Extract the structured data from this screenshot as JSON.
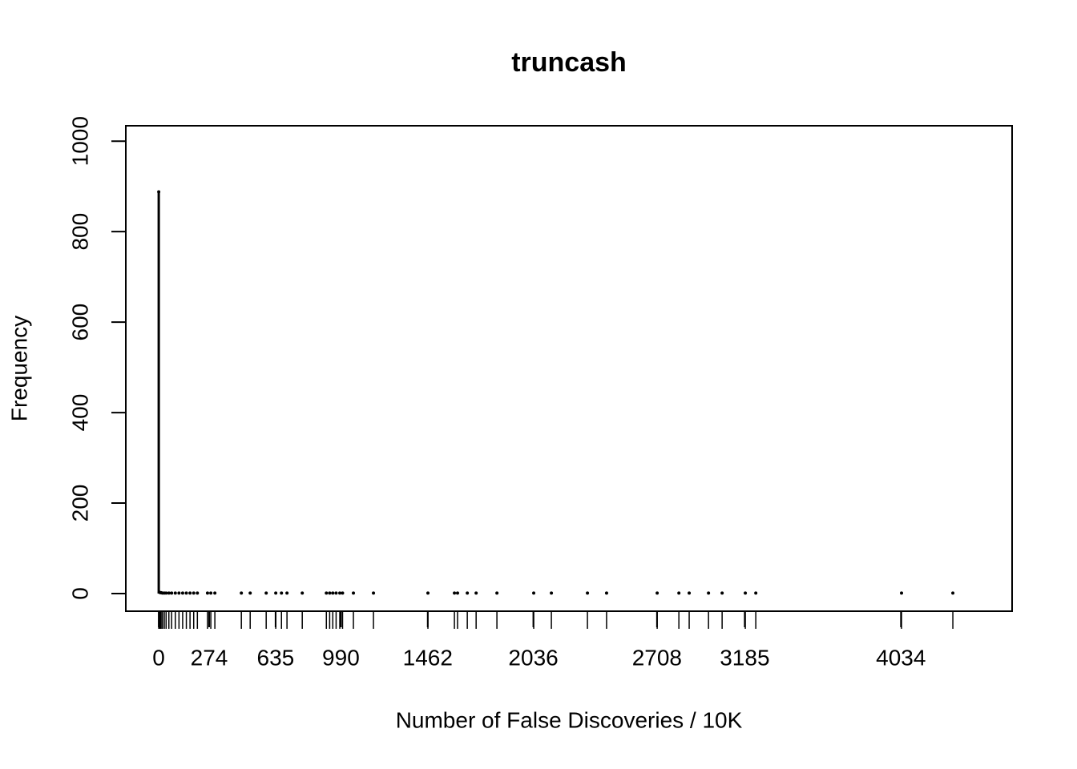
{
  "chart_data": {
    "type": "needle",
    "title": "truncash",
    "x_label": "Number of False Discoveries / 10K",
    "y_label": "Frequency",
    "x": [
      0,
      3,
      8,
      13,
      20,
      30,
      40,
      55,
      70,
      90,
      110,
      130,
      150,
      170,
      190,
      210,
      265,
      283,
      305,
      449,
      497,
      584,
      636,
      667,
      697,
      780,
      911,
      929,
      946,
      964,
      984,
      999,
      1058,
      1167,
      1463,
      1607,
      1624,
      1677,
      1725,
      1838,
      2038,
      2134,
      2330,
      2434,
      2709,
      2827,
      2883,
      2988,
      3062,
      3188,
      3245,
      4037,
      4316
    ],
    "values": [
      888,
      3,
      2,
      2,
      1,
      1,
      1,
      1,
      1,
      1,
      1,
      1,
      1,
      1,
      1,
      1,
      1,
      1,
      1,
      1,
      1,
      1,
      1,
      1,
      1,
      1,
      1,
      1,
      1,
      1,
      1,
      1,
      1,
      1,
      1,
      1,
      1,
      1,
      1,
      1,
      1,
      1,
      1,
      1,
      1,
      1,
      1,
      1,
      1,
      1,
      1,
      1,
      1
    ],
    "color": "#000000",
    "xlim": [
      -179,
      4638
    ],
    "ylim": [
      -39,
      1034
    ],
    "xticks": [
      0,
      274,
      635,
      990,
      1462,
      2036,
      2708,
      3185,
      4034
    ],
    "yticks": [
      0,
      200,
      400,
      600,
      800,
      1000
    ],
    "rug": true
  }
}
